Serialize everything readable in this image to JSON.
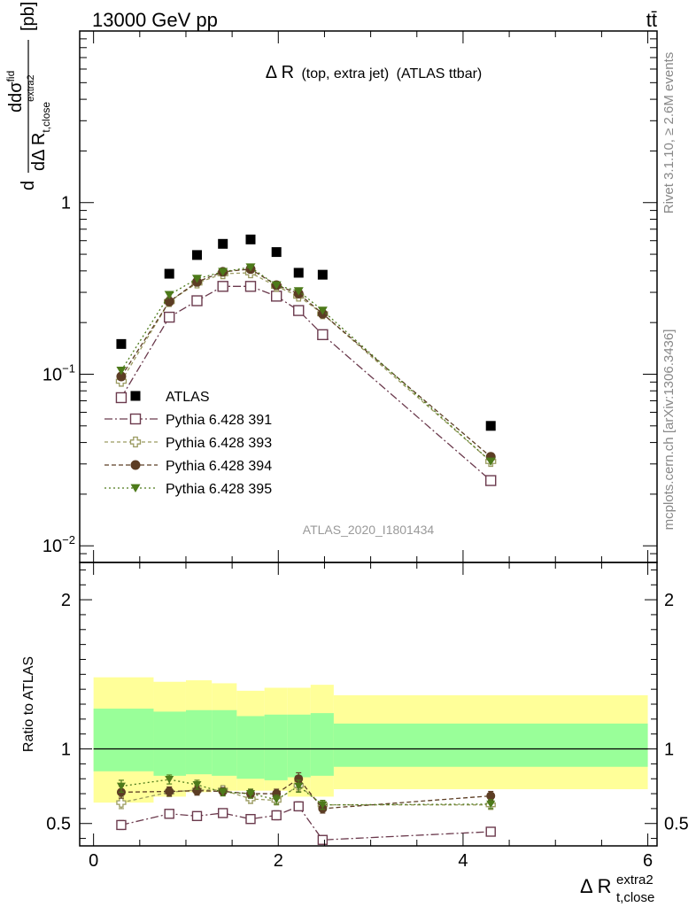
{
  "header": {
    "left": "13000 GeV pp",
    "right": "tt̄"
  },
  "side_labels": {
    "rivet": "Rivet 3.1.10, ≥ 2.6M events",
    "mcplots": "mcplots.cern.ch [arXiv:1306.3436]"
  },
  "chart_data": [
    {
      "type": "scatter",
      "title_main": "Δ R",
      "title_paren": "(top, extra jet)",
      "title_tail": "(ATLAS ttbar)",
      "analysis_id": "ATLAS_2020_I1801434",
      "ylabel": {
        "numerator_d": "d",
        "sigma_sup": "fid",
        "den_prefix": "dΔ R",
        "den_sub": "t,close",
        "den_sup": "extra2",
        "unit": "[pb]"
      },
      "yscale": "log",
      "ylim": [
        0.008,
        10
      ],
      "xlim": [
        -0.15,
        6.1
      ],
      "y_tick_labels": [
        {
          "value": 1,
          "base": "1",
          "exp": ""
        },
        {
          "value": 0.1,
          "base": "10",
          "exp": "−1"
        },
        {
          "value": 0.01,
          "base": "10",
          "exp": "−2"
        }
      ],
      "legend_position": "middle-left",
      "x": [
        0.3,
        0.82,
        1.12,
        1.4,
        1.7,
        1.98,
        2.22,
        2.48,
        4.3
      ],
      "series": [
        {
          "name": "ATLAS",
          "color": "#000000",
          "marker": "filled-square",
          "values": [
            0.15,
            0.385,
            0.495,
            0.575,
            0.61,
            0.515,
            0.39,
            0.38,
            0.05
          ]
        },
        {
          "name": "Pythia 6.428 391",
          "color": "#6b3a4d",
          "marker": "open-square",
          "dash": "9,3,2,3",
          "values": [
            0.073,
            0.215,
            0.268,
            0.325,
            0.325,
            0.285,
            0.235,
            0.17,
            0.024
          ]
        },
        {
          "name": "Pythia 6.428 393",
          "color": "#9a9a60",
          "marker": "open-cross",
          "dash": "4,3",
          "values": [
            0.091,
            0.265,
            0.34,
            0.385,
            0.39,
            0.325,
            0.285,
            0.225,
            0.031
          ]
        },
        {
          "name": "Pythia 6.428 394",
          "color": "#5c3d24",
          "marker": "filled-circle",
          "dash": "5,3",
          "values": [
            0.097,
            0.265,
            0.345,
            0.395,
            0.41,
            0.33,
            0.295,
            0.225,
            0.033
          ]
        },
        {
          "name": "Pythia 6.428 395",
          "color": "#4d7a1a",
          "marker": "filled-triangle-down",
          "dash": "2,3",
          "values": [
            0.105,
            0.29,
            0.36,
            0.395,
            0.42,
            0.33,
            0.305,
            0.235,
            0.031
          ]
        }
      ]
    },
    {
      "type": "scatter",
      "ylabel": "Ratio to ATLAS",
      "xlabel_main": "Δ R",
      "xlabel_sup": "extra2",
      "xlabel_sub": "t,close",
      "xlim": [
        -0.15,
        6.1
      ],
      "ylim": [
        0.35,
        2.25
      ],
      "x_ticks": [
        0,
        2,
        4,
        6
      ],
      "y_ticks": [
        0.5,
        1,
        2
      ],
      "x_tick_labels": [
        "0",
        "2",
        "4",
        "6"
      ],
      "y_tick_labels": [
        "0.5",
        "1",
        "2"
      ],
      "bins": [
        {
          "x0": 0.0,
          "x1": 0.65,
          "y1_lo": 0.85,
          "y1_hi": 1.27,
          "y2_lo": 0.64,
          "y2_hi": 1.48
        },
        {
          "x0": 0.65,
          "x1": 1.0,
          "y1_lo": 0.82,
          "y1_hi": 1.25,
          "y2_lo": 0.68,
          "y2_hi": 1.45
        },
        {
          "x0": 1.0,
          "x1": 1.28,
          "y1_lo": 0.83,
          "y1_hi": 1.26,
          "y2_lo": 0.71,
          "y2_hi": 1.46
        },
        {
          "x0": 1.28,
          "x1": 1.55,
          "y1_lo": 0.82,
          "y1_hi": 1.26,
          "y2_lo": 0.72,
          "y2_hi": 1.44
        },
        {
          "x0": 1.55,
          "x1": 1.85,
          "y1_lo": 0.8,
          "y1_hi": 1.22,
          "y2_lo": 0.72,
          "y2_hi": 1.39
        },
        {
          "x0": 1.85,
          "x1": 2.1,
          "y1_lo": 0.79,
          "y1_hi": 1.23,
          "y2_lo": 0.72,
          "y2_hi": 1.41
        },
        {
          "x0": 2.1,
          "x1": 2.35,
          "y1_lo": 0.81,
          "y1_hi": 1.23,
          "y2_lo": 0.68,
          "y2_hi": 1.41
        },
        {
          "x0": 2.35,
          "x1": 2.6,
          "y1_lo": 0.82,
          "y1_hi": 1.24,
          "y2_lo": 0.68,
          "y2_hi": 1.43
        },
        {
          "x0": 2.6,
          "x1": 6.0,
          "y1_lo": 0.88,
          "y1_hi": 1.17,
          "y2_lo": 0.73,
          "y2_hi": 1.36
        }
      ],
      "x": [
        0.3,
        0.82,
        1.12,
        1.4,
        1.7,
        1.98,
        2.22,
        2.48,
        4.3
      ],
      "series": [
        {
          "name": "Pythia 6.428 391",
          "values": [
            0.49,
            0.565,
            0.55,
            0.57,
            0.53,
            0.555,
            0.615,
            0.39,
            0.445
          ],
          "errors": [
            0.03,
            0.02,
            0.025,
            0.02,
            0.025,
            0.03,
            0.03,
            0.02,
            0.02
          ]
        },
        {
          "name": "Pythia 6.428 393",
          "values": [
            0.64,
            0.71,
            0.725,
            0.725,
            0.665,
            0.655,
            0.755,
            0.625,
            0.625
          ],
          "errors": [
            0.04,
            0.03,
            0.03,
            0.025,
            0.03,
            0.03,
            0.04,
            0.03,
            0.03
          ]
        },
        {
          "name": "Pythia 6.428 394",
          "values": [
            0.71,
            0.715,
            0.72,
            0.715,
            0.7,
            0.7,
            0.8,
            0.6,
            0.685
          ],
          "errors": [
            0.04,
            0.03,
            0.03,
            0.025,
            0.03,
            0.03,
            0.04,
            0.03,
            0.03
          ]
        },
        {
          "name": "Pythia 6.428 395",
          "values": [
            0.75,
            0.795,
            0.76,
            0.71,
            0.7,
            0.66,
            0.75,
            0.625,
            0.63
          ],
          "errors": [
            0.04,
            0.03,
            0.03,
            0.025,
            0.03,
            0.03,
            0.04,
            0.03,
            0.03
          ]
        }
      ]
    }
  ]
}
